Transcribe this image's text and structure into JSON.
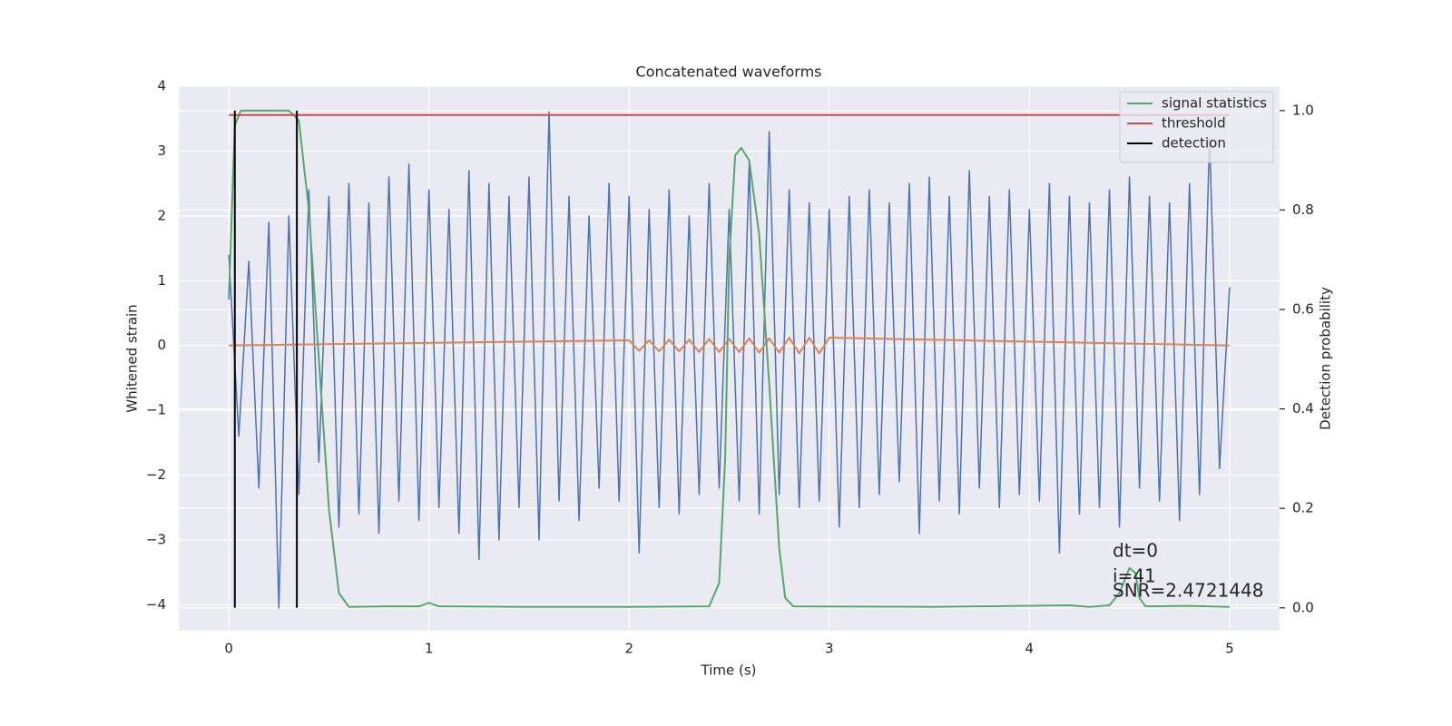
{
  "chart_data": {
    "type": "line",
    "title": "Concatenated waveforms",
    "xlabel": "Time (s)",
    "ylabel": "Whitened strain",
    "y2label": "Detection probability",
    "xlim": [
      -0.25,
      5.25
    ],
    "ylim": [
      -4.4,
      4.0
    ],
    "y2lim": [
      -0.046,
      1.049
    ],
    "xticks": [
      0,
      1,
      2,
      3,
      4,
      5
    ],
    "yticks": [
      {
        "value": -4,
        "label": "−4"
      },
      {
        "value": -3,
        "label": "−3"
      },
      {
        "value": -2,
        "label": "−2"
      },
      {
        "value": -1,
        "label": "−1"
      },
      0,
      1,
      2,
      3,
      4
    ],
    "y2ticks": [
      {
        "value": 0,
        "label": "0.0"
      },
      {
        "value": 0.2,
        "label": "0.2"
      },
      {
        "value": 0.4,
        "label": "0.4"
      },
      {
        "value": 0.6,
        "label": "0.6"
      },
      {
        "value": 0.8,
        "label": "0.8"
      },
      {
        "value": 1.0,
        "label": "1.0"
      }
    ],
    "grid": true,
    "legend": "upper right",
    "series": [
      {
        "color": "#4c72b0",
        "x": [
          0,
          0.05,
          0.1,
          0.15,
          0.2,
          0.25,
          0.3,
          0.35,
          0.4,
          0.45,
          0.5,
          0.55,
          0.6,
          0.65,
          0.7,
          0.75,
          0.8,
          0.85,
          0.9,
          0.95,
          1.0,
          1.05,
          1.1,
          1.15,
          1.2,
          1.25,
          1.3,
          1.35,
          1.4,
          1.45,
          1.5,
          1.55,
          1.6,
          1.65,
          1.7,
          1.75,
          1.8,
          1.85,
          1.9,
          1.95,
          2.0,
          2.05,
          2.1,
          2.15,
          2.2,
          2.25,
          2.3,
          2.35,
          2.4,
          2.45,
          2.5,
          2.55,
          2.6,
          2.65,
          2.7,
          2.75,
          2.8,
          2.85,
          2.9,
          2.95,
          3.0,
          3.05,
          3.1,
          3.15,
          3.2,
          3.25,
          3.3,
          3.35,
          3.4,
          3.45,
          3.5,
          3.55,
          3.6,
          3.65,
          3.7,
          3.75,
          3.8,
          3.85,
          3.9,
          3.95,
          4.0,
          4.05,
          4.1,
          4.15,
          4.2,
          4.25,
          4.3,
          4.35,
          4.4,
          4.45,
          4.5,
          4.55,
          4.6,
          4.65,
          4.7,
          4.75,
          4.8,
          4.85,
          4.9,
          4.95,
          5.0
        ],
        "values": [
          1.4,
          -1.4,
          1.3,
          -2.2,
          1.9,
          -4.05,
          2.0,
          -2.3,
          2.4,
          -1.8,
          2.3,
          -2.8,
          2.5,
          -2.6,
          2.2,
          -2.9,
          2.6,
          -2.4,
          2.8,
          -2.7,
          2.4,
          -2.5,
          2.1,
          -2.9,
          2.7,
          -3.3,
          2.5,
          -3.0,
          2.3,
          -2.5,
          2.6,
          -3.0,
          3.6,
          -2.4,
          2.3,
          -2.7,
          2.0,
          -2.2,
          2.5,
          -2.4,
          2.3,
          -3.2,
          2.1,
          -2.5,
          2.4,
          -2.6,
          2.0,
          -2.3,
          2.5,
          -2.2,
          2.1,
          -2.4,
          2.8,
          -2.6,
          3.3,
          -2.3,
          2.4,
          -2.5,
          2.2,
          -2.4,
          2.1,
          -2.8,
          2.3,
          -2.5,
          2.4,
          -2.3,
          2.2,
          -2.1,
          2.5,
          -2.9,
          2.6,
          -2.4,
          2.3,
          -2.6,
          2.7,
          -2.2,
          2.3,
          -2.5,
          2.4,
          -2.3,
          2.1,
          -2.4,
          2.5,
          -3.2,
          2.3,
          -2.6,
          2.2,
          -2.5,
          2.4,
          -2.8,
          2.6,
          -2.2,
          2.3,
          -2.4,
          2.2,
          -2.7,
          2.5,
          -2.3,
          3.2,
          -1.9,
          0.9
        ]
      },
      {
        "color": "#dd8452",
        "x": [
          0,
          2.0,
          2.05,
          2.1,
          2.15,
          2.2,
          2.25,
          2.3,
          2.35,
          2.4,
          2.45,
          2.5,
          2.55,
          2.6,
          2.65,
          2.7,
          2.75,
          2.8,
          2.85,
          2.9,
          2.95,
          3.0,
          5
        ],
        "values": [
          0,
          0.08,
          -0.08,
          0.08,
          -0.09,
          0.09,
          -0.09,
          0.09,
          -0.1,
          0.1,
          -0.1,
          0.1,
          -0.1,
          0.11,
          -0.11,
          0.11,
          -0.11,
          0.12,
          -0.12,
          0.12,
          -0.12,
          0.12,
          0
        ]
      },
      {
        "name": "signal statistics",
        "color": "#55a868",
        "axis": "y2",
        "x": [
          0,
          0.03,
          0.06,
          0.1,
          0.3,
          0.35,
          0.4,
          0.45,
          0.5,
          0.55,
          0.6,
          0.8,
          0.95,
          1.0,
          1.05,
          1.5,
          2.0,
          2.4,
          2.45,
          2.48,
          2.5,
          2.53,
          2.56,
          2.6,
          2.65,
          2.7,
          2.75,
          2.78,
          2.82,
          3.5,
          4.2,
          4.3,
          4.4,
          4.45,
          4.5,
          4.53,
          4.55,
          4.58,
          4.8,
          5.0
        ],
        "values": [
          0.62,
          0.97,
          1.0,
          1.0,
          1.0,
          0.98,
          0.8,
          0.5,
          0.2,
          0.03,
          0.002,
          0.003,
          0.003,
          0.01,
          0.003,
          0.002,
          0.002,
          0.003,
          0.05,
          0.3,
          0.7,
          0.91,
          0.925,
          0.9,
          0.75,
          0.45,
          0.12,
          0.02,
          0.003,
          0.002,
          0.005,
          0.002,
          0.005,
          0.03,
          0.08,
          0.07,
          0.02,
          0.003,
          0.004,
          0.002
        ]
      },
      {
        "name": "threshold",
        "color": "#c44e52",
        "axis": "y2",
        "x": [
          0,
          5
        ],
        "values": [
          0.991,
          0.991
        ]
      }
    ],
    "detection": {
      "name": "detection",
      "color": "#000000",
      "x": [
        0.03,
        0.34
      ],
      "ymin": 0,
      "ymax": 1
    },
    "annotations": [
      "dt=0",
      "i=41",
      "SNR=2.4721448"
    ]
  }
}
